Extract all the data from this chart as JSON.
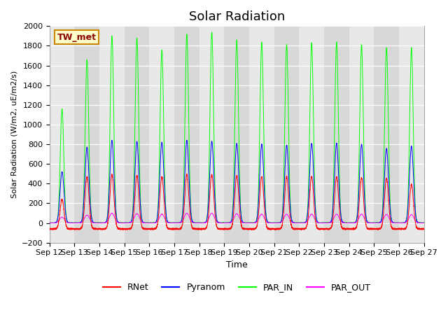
{
  "title": "Solar Radiation",
  "ylabel": "Solar Radiation (W/m2, uE/m2/s)",
  "xlabel": "Time",
  "station_label": "TW_met",
  "ylim": [
    -200,
    2000
  ],
  "yticks": [
    -200,
    0,
    200,
    400,
    600,
    800,
    1000,
    1200,
    1400,
    1600,
    1800,
    2000
  ],
  "x_start": 12,
  "x_end": 27,
  "x_ticks": [
    12,
    13,
    14,
    15,
    16,
    17,
    18,
    19,
    20,
    21,
    22,
    23,
    24,
    25,
    26,
    27
  ],
  "x_tick_labels": [
    "Sep 12",
    "Sep 13",
    "Sep 14",
    "Sep 15",
    "Sep 16",
    "Sep 17",
    "Sep 18",
    "Sep 19",
    "Sep 20",
    "Sep 21",
    "Sep 22",
    "Sep 23",
    "Sep 24",
    "Sep 25",
    "Sep 26",
    "Sep 27"
  ],
  "colors": {
    "RNet": "#ff0000",
    "Pyranom": "#0000ff",
    "PAR_IN": "#00ff00",
    "PAR_OUT": "#ff00ff"
  },
  "band_colors": [
    "#e8e8e8",
    "#d8d8d8"
  ],
  "grid_color": "#ffffff",
  "par_in_peaks": [
    1160,
    1660,
    1900,
    1880,
    1760,
    1920,
    1940,
    1860,
    1840,
    1810,
    1830,
    1840,
    1810,
    1780,
    1780
  ],
  "pyranom_peaks": [
    520,
    770,
    840,
    830,
    820,
    840,
    830,
    810,
    800,
    790,
    810,
    810,
    800,
    760,
    780
  ],
  "rnet_peaks": [
    300,
    530,
    550,
    540,
    530,
    550,
    550,
    540,
    530,
    530,
    530,
    530,
    520,
    510,
    450
  ],
  "par_out_peaks": [
    60,
    80,
    100,
    95,
    90,
    100,
    100,
    95,
    90,
    90,
    90,
    90,
    90,
    88,
    85
  ],
  "title_fontsize": 13,
  "axis_fontsize": 8,
  "label_fontsize": 9
}
